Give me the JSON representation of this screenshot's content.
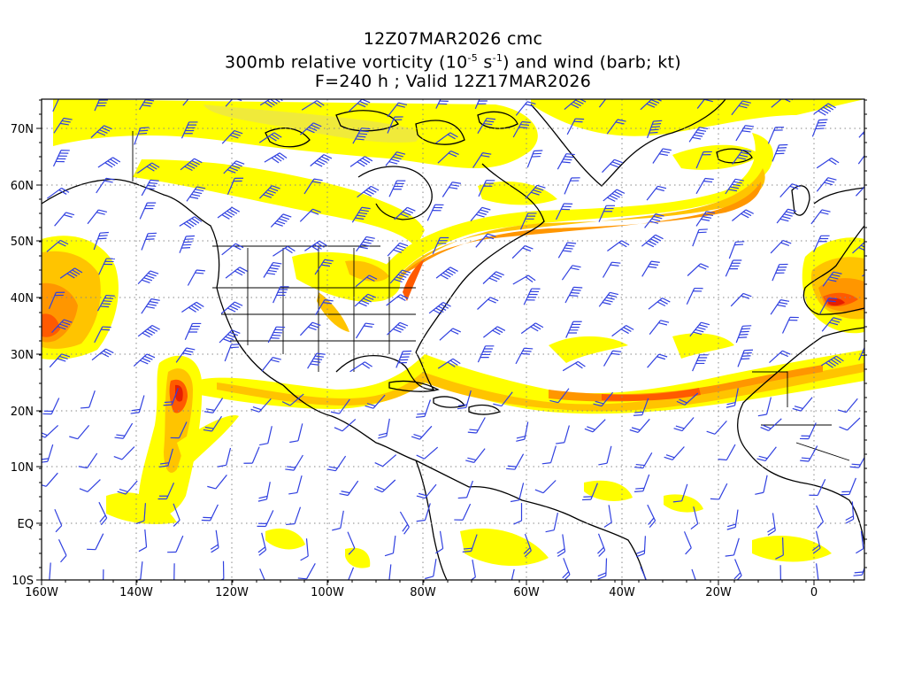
{
  "titles": {
    "line1": "12Z07MAR2026 cmc",
    "line2_pre": "300mb relative vorticity (10",
    "line2_sup1": "-5",
    "line2_mid": " s",
    "line2_sup2": "-1",
    "line2_post": ") and wind (barb; kt)",
    "line3": "F=240 h ; Valid 12Z17MAR2026"
  },
  "axes": {
    "lon_labels": [
      "160W",
      "140W",
      "120W",
      "100W",
      "80W",
      "60W",
      "40W",
      "20W",
      "0"
    ],
    "lat_labels": [
      "70N",
      "60N",
      "50N",
      "40N",
      "30N",
      "20N",
      "10N",
      "EQ",
      "10S"
    ],
    "lon_range": [
      -160,
      10
    ],
    "lat_range": [
      -10,
      75
    ],
    "grid": "dotted"
  },
  "colors": {
    "shade_1": "#ffff00",
    "shade_2": "#f0ea3a",
    "shade_3": "#ffc400",
    "shade_4": "#ff9600",
    "shade_5": "#ff5a00",
    "shade_6": "#e61e00",
    "barb": "#3040e0",
    "coast": "#000000"
  },
  "icons": {
    "wind_barb": "wind-barb-icon"
  }
}
